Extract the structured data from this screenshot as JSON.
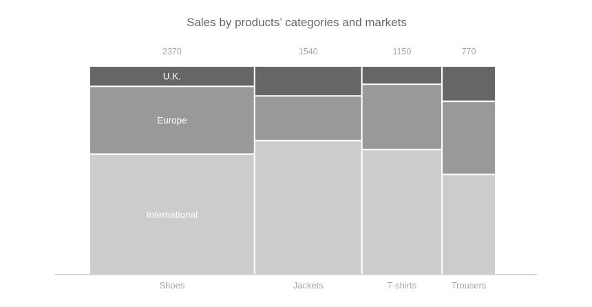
{
  "chart_data": {
    "type": "mekko",
    "title": "Sales by products’ categories and markets",
    "xlabel": "",
    "ylabel": "",
    "grid": false,
    "legend": "none",
    "categories": [
      "Shoes",
      "Jackets",
      "T-shirts",
      "Trousers"
    ],
    "totals": [
      2370,
      1540,
      1150,
      770
    ],
    "total_labels": [
      "2370",
      "1540",
      "1150",
      "770"
    ],
    "series": [
      {
        "name": "International",
        "color": "#cccccc",
        "values": [
          1370,
          990,
          690,
          370
        ]
      },
      {
        "name": "Europe",
        "color": "#999999",
        "values": [
          770,
          330,
          360,
          270
        ]
      },
      {
        "name": "U.K.",
        "color": "#666666",
        "values": [
          230,
          220,
          100,
          130
        ]
      }
    ],
    "segment_labels_shown_on": "Shoes",
    "colors": {
      "title": "#666666",
      "muted_text": "#a6a6a6",
      "baseline": "#bfbfbf",
      "separator": "#ffffff"
    }
  }
}
